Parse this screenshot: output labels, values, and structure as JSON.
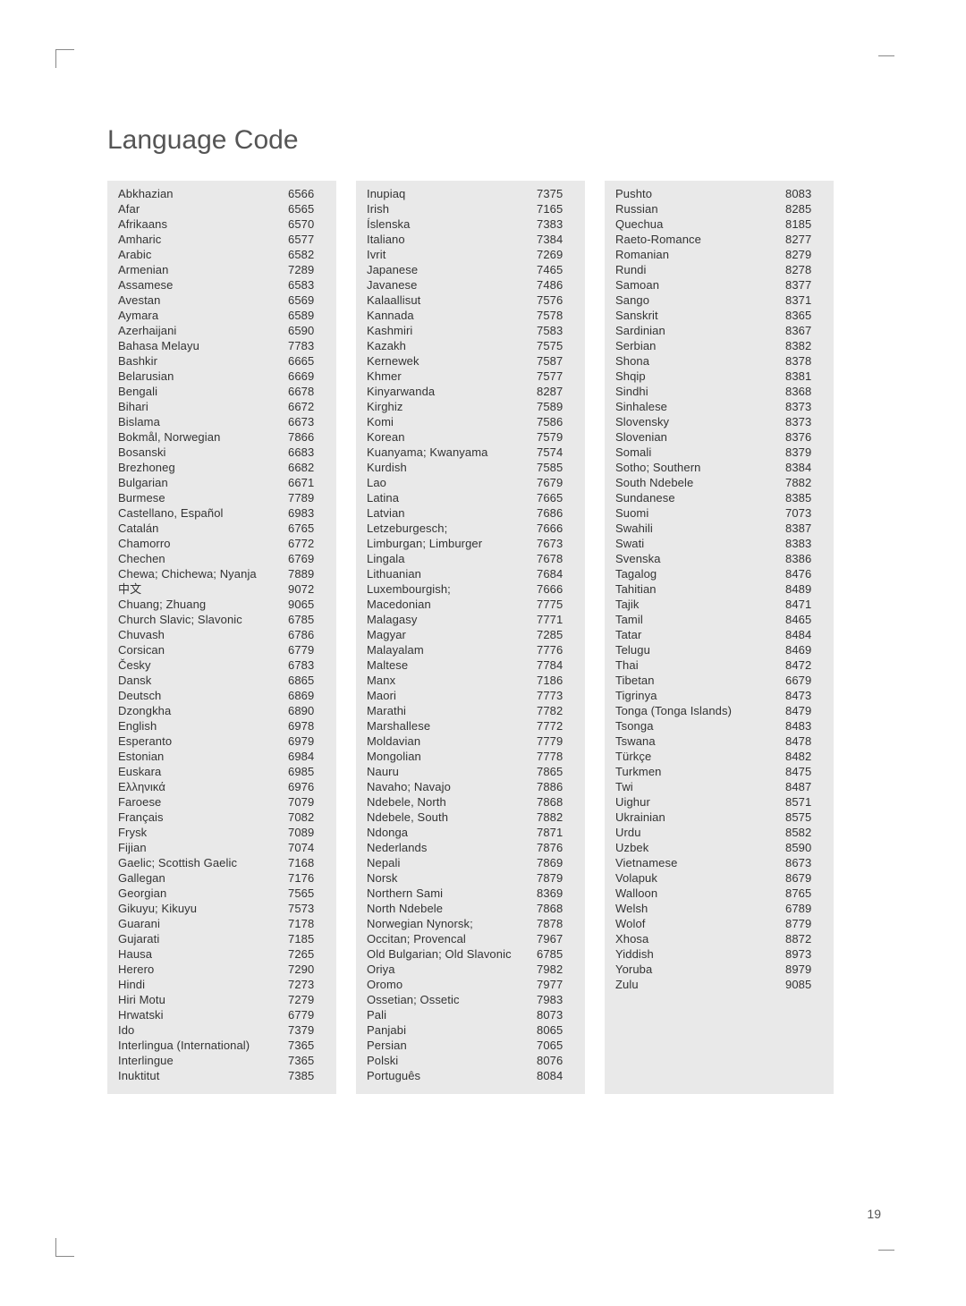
{
  "title": "Language Code",
  "page_number": "19",
  "column_bg": "#e9e9e9",
  "columns": [
    [
      [
        "Abkhazian",
        "6566"
      ],
      [
        "Afar",
        "6565"
      ],
      [
        "Afrikaans",
        "6570"
      ],
      [
        "Amharic",
        "6577"
      ],
      [
        "Arabic",
        "6582"
      ],
      [
        "Armenian",
        "7289"
      ],
      [
        "Assamese",
        "6583"
      ],
      [
        "Avestan",
        "6569"
      ],
      [
        "Aymara",
        "6589"
      ],
      [
        "Azerhaijani",
        "6590"
      ],
      [
        "Bahasa Melayu",
        "7783"
      ],
      [
        "Bashkir",
        "6665"
      ],
      [
        "Belarusian",
        "6669"
      ],
      [
        "Bengali",
        "6678"
      ],
      [
        "Bihari",
        "6672"
      ],
      [
        "Bislama",
        "6673"
      ],
      [
        "Bokmål, Norwegian",
        "7866"
      ],
      [
        "Bosanski",
        "6683"
      ],
      [
        "Brezhoneg",
        "6682"
      ],
      [
        "Bulgarian",
        "6671"
      ],
      [
        "Burmese",
        "7789"
      ],
      [
        "Castellano, Español",
        "6983"
      ],
      [
        "Catalán",
        "6765"
      ],
      [
        "Chamorro",
        "6772"
      ],
      [
        "Chechen",
        "6769"
      ],
      [
        "Chewa; Chichewa; Nyanja",
        "7889"
      ],
      [
        "中文",
        "9072"
      ],
      [
        "Chuang; Zhuang",
        "9065"
      ],
      [
        "Church Slavic; Slavonic",
        "6785"
      ],
      [
        "Chuvash",
        "6786"
      ],
      [
        "Corsican",
        "6779"
      ],
      [
        "Česky",
        "6783"
      ],
      [
        "Dansk",
        "6865"
      ],
      [
        "Deutsch",
        "6869"
      ],
      [
        "Dzongkha",
        "6890"
      ],
      [
        "English",
        "6978"
      ],
      [
        "Esperanto",
        "6979"
      ],
      [
        "Estonian",
        "6984"
      ],
      [
        "Euskara",
        "6985"
      ],
      [
        "Ελληνικά",
        "6976"
      ],
      [
        "Faroese",
        "7079"
      ],
      [
        "Français",
        "7082"
      ],
      [
        "Frysk",
        "7089"
      ],
      [
        "Fijian",
        "7074"
      ],
      [
        "Gaelic; Scottish Gaelic",
        "7168"
      ],
      [
        "Gallegan",
        "7176"
      ],
      [
        "Georgian",
        "7565"
      ],
      [
        "Gikuyu; Kikuyu",
        "7573"
      ],
      [
        "Guarani",
        "7178"
      ],
      [
        "Gujarati",
        "7185"
      ],
      [
        "Hausa",
        "7265"
      ],
      [
        "Herero",
        "7290"
      ],
      [
        "Hindi",
        "7273"
      ],
      [
        "Hiri Motu",
        "7279"
      ],
      [
        "Hrwatski",
        "6779"
      ],
      [
        "Ido",
        "7379"
      ],
      [
        "Interlingua (International)",
        "7365"
      ],
      [
        "Interlingue",
        "7365"
      ],
      [
        "Inuktitut",
        "7385"
      ]
    ],
    [
      [
        "Inupiaq",
        "7375"
      ],
      [
        "Irish",
        "7165"
      ],
      [
        "Íslenska",
        "7383"
      ],
      [
        "Italiano",
        "7384"
      ],
      [
        "Ivrit",
        "7269"
      ],
      [
        "Japanese",
        "7465"
      ],
      [
        "Javanese",
        "7486"
      ],
      [
        "Kalaallisut",
        "7576"
      ],
      [
        "Kannada",
        "7578"
      ],
      [
        "Kashmiri",
        "7583"
      ],
      [
        "Kazakh",
        "7575"
      ],
      [
        "Kernewek",
        "7587"
      ],
      [
        "Khmer",
        "7577"
      ],
      [
        "Kinyarwanda",
        "8287"
      ],
      [
        "Kirghiz",
        "7589"
      ],
      [
        "Komi",
        "7586"
      ],
      [
        "Korean",
        "7579"
      ],
      [
        "Kuanyama; Kwanyama",
        "7574"
      ],
      [
        "Kurdish",
        "7585"
      ],
      [
        "Lao",
        "7679"
      ],
      [
        "Latina",
        "7665"
      ],
      [
        "Latvian",
        "7686"
      ],
      [
        "Letzeburgesch;",
        "7666"
      ],
      [
        "Limburgan; Limburger",
        "7673"
      ],
      [
        "Lingala",
        "7678"
      ],
      [
        "Lithuanian",
        "7684"
      ],
      [
        "Luxembourgish;",
        "7666"
      ],
      [
        "Macedonian",
        "7775"
      ],
      [
        "Malagasy",
        "7771"
      ],
      [
        "Magyar",
        "7285"
      ],
      [
        "Malayalam",
        "7776"
      ],
      [
        "Maltese",
        "7784"
      ],
      [
        "Manx",
        "7186"
      ],
      [
        "Maori",
        "7773"
      ],
      [
        "Marathi",
        "7782"
      ],
      [
        "Marshallese",
        "7772"
      ],
      [
        "Moldavian",
        "7779"
      ],
      [
        "Mongolian",
        "7778"
      ],
      [
        "Nauru",
        "7865"
      ],
      [
        "Navaho; Navajo",
        "7886"
      ],
      [
        "Ndebele, North",
        "7868"
      ],
      [
        "Ndebele, South",
        "7882"
      ],
      [
        "Ndonga",
        "7871"
      ],
      [
        "Nederlands",
        "7876"
      ],
      [
        "Nepali",
        "7869"
      ],
      [
        "Norsk",
        "7879"
      ],
      [
        "Northern Sami",
        "8369"
      ],
      [
        "North Ndebele",
        "7868"
      ],
      [
        "Norwegian Nynorsk;",
        "7878"
      ],
      [
        "Occitan; Provencal",
        "7967"
      ],
      [
        "Old Bulgarian; Old Slavonic",
        "6785"
      ],
      [
        "Oriya",
        "7982"
      ],
      [
        "Oromo",
        "7977"
      ],
      [
        "Ossetian; Ossetic",
        "7983"
      ],
      [
        "Pali",
        "8073"
      ],
      [
        "Panjabi",
        "8065"
      ],
      [
        "Persian",
        "7065"
      ],
      [
        "Polski",
        "8076"
      ],
      [
        "Português",
        "8084"
      ]
    ],
    [
      [
        "Pushto",
        "8083"
      ],
      [
        "Russian",
        "8285"
      ],
      [
        "Quechua",
        "8185"
      ],
      [
        "Raeto-Romance",
        "8277"
      ],
      [
        "Romanian",
        "8279"
      ],
      [
        "Rundi",
        "8278"
      ],
      [
        "Samoan",
        "8377"
      ],
      [
        "Sango",
        "8371"
      ],
      [
        "Sanskrit",
        "8365"
      ],
      [
        "Sardinian",
        "8367"
      ],
      [
        "Serbian",
        "8382"
      ],
      [
        "Shona",
        "8378"
      ],
      [
        "Shqip",
        "8381"
      ],
      [
        "Sindhi",
        "8368"
      ],
      [
        "Sinhalese",
        "8373"
      ],
      [
        "Slovensky",
        "8373"
      ],
      [
        "Slovenian",
        "8376"
      ],
      [
        "Somali",
        "8379"
      ],
      [
        "Sotho; Southern",
        "8384"
      ],
      [
        "South Ndebele",
        "7882"
      ],
      [
        "Sundanese",
        "8385"
      ],
      [
        "Suomi",
        "7073"
      ],
      [
        "Swahili",
        "8387"
      ],
      [
        "Swati",
        "8383"
      ],
      [
        "Svenska",
        "8386"
      ],
      [
        "Tagalog",
        "8476"
      ],
      [
        "Tahitian",
        "8489"
      ],
      [
        "Tajik",
        "8471"
      ],
      [
        "Tamil",
        "8465"
      ],
      [
        "Tatar",
        "8484"
      ],
      [
        "Telugu",
        "8469"
      ],
      [
        "Thai",
        "8472"
      ],
      [
        "Tibetan",
        "6679"
      ],
      [
        "Tigrinya",
        "8473"
      ],
      [
        "Tonga (Tonga Islands)",
        "8479"
      ],
      [
        "Tsonga",
        "8483"
      ],
      [
        "Tswana",
        "8478"
      ],
      [
        "Türkçe",
        "8482"
      ],
      [
        "Turkmen",
        "8475"
      ],
      [
        "Twi",
        "8487"
      ],
      [
        "Uighur",
        "8571"
      ],
      [
        "Ukrainian",
        "8575"
      ],
      [
        "Urdu",
        "8582"
      ],
      [
        "Uzbek",
        "8590"
      ],
      [
        "Vietnamese",
        "8673"
      ],
      [
        "Volapuk",
        "8679"
      ],
      [
        "Walloon",
        "8765"
      ],
      [
        "Welsh",
        "6789"
      ],
      [
        "Wolof",
        "8779"
      ],
      [
        "Xhosa",
        "8872"
      ],
      [
        "Yiddish",
        "8973"
      ],
      [
        "Yoruba",
        "8979"
      ],
      [
        "Zulu",
        "9085"
      ]
    ]
  ]
}
